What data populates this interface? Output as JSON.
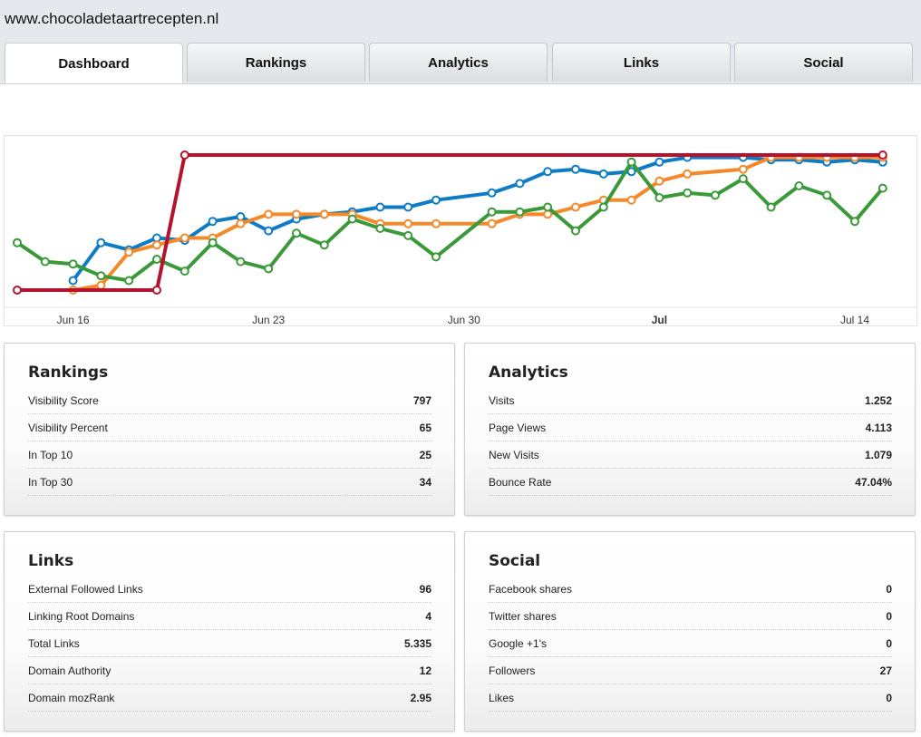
{
  "site_title": "www.chocoladetaartrecepten.nl",
  "tabs": [
    {
      "label": "Dashboard",
      "active": true
    },
    {
      "label": "Rankings",
      "active": false
    },
    {
      "label": "Analytics",
      "active": false
    },
    {
      "label": "Links",
      "active": false
    },
    {
      "label": "Social",
      "active": false
    }
  ],
  "chart_data": {
    "type": "line",
    "x_tick_labels": [
      "Jun 16",
      "Jun 23",
      "Jun 30",
      "Jul",
      "Jul 14"
    ],
    "x_range": [
      "2013-06-14",
      "2013-07-15"
    ],
    "y_axis_visible": false,
    "grid": false,
    "series": [
      {
        "color": "#0e7cc4",
        "points": [
          [
            "2013-06-16",
            34
          ],
          [
            "2013-06-17",
            50
          ],
          [
            "2013-06-18",
            47
          ],
          [
            "2013-06-19",
            52
          ],
          [
            "2013-06-20",
            51
          ],
          [
            "2013-06-21",
            59
          ],
          [
            "2013-06-22",
            61
          ],
          [
            "2013-06-23",
            55
          ],
          [
            "2013-06-24",
            60
          ],
          [
            "2013-06-25",
            62
          ],
          [
            "2013-06-26",
            63
          ],
          [
            "2013-06-27",
            65
          ],
          [
            "2013-06-28",
            65
          ],
          [
            "2013-06-29",
            68
          ],
          [
            "2013-07-01",
            71
          ],
          [
            "2013-07-02",
            75
          ],
          [
            "2013-07-03",
            80
          ],
          [
            "2013-07-04",
            81
          ],
          [
            "2013-07-05",
            79
          ],
          [
            "2013-07-06",
            80
          ],
          [
            "2013-07-07",
            84
          ],
          [
            "2013-07-08",
            86
          ],
          [
            "2013-07-10",
            86
          ],
          [
            "2013-07-11",
            85
          ],
          [
            "2013-07-12",
            85
          ],
          [
            "2013-07-13",
            84
          ],
          [
            "2013-07-14",
            85
          ],
          [
            "2013-07-15",
            84
          ]
        ]
      },
      {
        "color": "#f4892a",
        "points": [
          [
            "2013-06-16",
            30
          ],
          [
            "2013-06-17",
            32
          ],
          [
            "2013-06-18",
            46
          ],
          [
            "2013-06-19",
            49
          ],
          [
            "2013-06-20",
            52
          ],
          [
            "2013-06-21",
            52
          ],
          [
            "2013-06-22",
            58
          ],
          [
            "2013-06-23",
            62
          ],
          [
            "2013-06-24",
            62
          ],
          [
            "2013-06-25",
            62
          ],
          [
            "2013-06-26",
            62
          ],
          [
            "2013-06-27",
            58
          ],
          [
            "2013-06-28",
            58
          ],
          [
            "2013-06-29",
            58
          ],
          [
            "2013-07-01",
            58
          ],
          [
            "2013-07-02",
            62
          ],
          [
            "2013-07-03",
            62
          ],
          [
            "2013-07-04",
            65
          ],
          [
            "2013-07-05",
            68
          ],
          [
            "2013-07-06",
            68
          ],
          [
            "2013-07-07",
            76
          ],
          [
            "2013-07-08",
            79
          ],
          [
            "2013-07-10",
            81
          ],
          [
            "2013-07-11",
            86
          ],
          [
            "2013-07-12",
            86
          ],
          [
            "2013-07-13",
            86
          ],
          [
            "2013-07-14",
            86
          ],
          [
            "2013-07-15",
            86
          ]
        ]
      },
      {
        "color": "#3a9a3a",
        "points": [
          [
            "2013-06-14",
            50
          ],
          [
            "2013-06-15",
            42
          ],
          [
            "2013-06-16",
            41
          ],
          [
            "2013-06-17",
            36
          ],
          [
            "2013-06-18",
            34
          ],
          [
            "2013-06-19",
            43
          ],
          [
            "2013-06-20",
            38
          ],
          [
            "2013-06-21",
            50
          ],
          [
            "2013-06-22",
            42
          ],
          [
            "2013-06-23",
            39
          ],
          [
            "2013-06-24",
            54
          ],
          [
            "2013-06-25",
            49
          ],
          [
            "2013-06-26",
            60
          ],
          [
            "2013-06-27",
            56
          ],
          [
            "2013-06-28",
            53
          ],
          [
            "2013-06-29",
            44
          ],
          [
            "2013-07-01",
            63
          ],
          [
            "2013-07-02",
            63
          ],
          [
            "2013-07-03",
            65
          ],
          [
            "2013-07-04",
            55
          ],
          [
            "2013-07-05",
            65
          ],
          [
            "2013-07-06",
            84
          ],
          [
            "2013-07-07",
            69
          ],
          [
            "2013-07-08",
            71
          ],
          [
            "2013-07-09",
            70
          ],
          [
            "2013-07-10",
            77
          ],
          [
            "2013-07-11",
            65
          ],
          [
            "2013-07-12",
            74
          ],
          [
            "2013-07-13",
            70
          ],
          [
            "2013-07-14",
            59
          ],
          [
            "2013-07-15",
            73
          ]
        ]
      },
      {
        "color": "#b5122d",
        "points": [
          [
            "2013-06-14",
            30
          ],
          [
            "2013-06-19",
            30
          ],
          [
            "2013-06-20",
            87
          ],
          [
            "2013-07-15",
            87
          ]
        ]
      }
    ]
  },
  "panels": [
    {
      "title": "Rankings",
      "rows": [
        {
          "label": "Visibility Score",
          "value": "797"
        },
        {
          "label": "Visibility Percent",
          "value": "65"
        },
        {
          "label": "In Top 10",
          "value": "25"
        },
        {
          "label": "In Top 30",
          "value": "34"
        }
      ]
    },
    {
      "title": "Analytics",
      "rows": [
        {
          "label": "Visits",
          "value": "1.252"
        },
        {
          "label": "Page Views",
          "value": "4.113"
        },
        {
          "label": "New Visits",
          "value": "1.079"
        },
        {
          "label": "Bounce Rate",
          "value": "47.04%"
        }
      ]
    },
    {
      "title": "Links",
      "rows": [
        {
          "label": "External Followed Links",
          "value": "96"
        },
        {
          "label": "Linking Root Domains",
          "value": "4"
        },
        {
          "label": "Total Links",
          "value": "5.335"
        },
        {
          "label": "Domain Authority",
          "value": "12"
        },
        {
          "label": "Domain mozRank",
          "value": "2.95"
        }
      ]
    },
    {
      "title": "Social",
      "rows": [
        {
          "label": "Facebook shares",
          "value": "0"
        },
        {
          "label": "Twitter shares",
          "value": "0"
        },
        {
          "label": "Google +1's",
          "value": "0"
        },
        {
          "label": "Followers",
          "value": "27"
        },
        {
          "label": "Likes",
          "value": "0"
        }
      ]
    }
  ]
}
